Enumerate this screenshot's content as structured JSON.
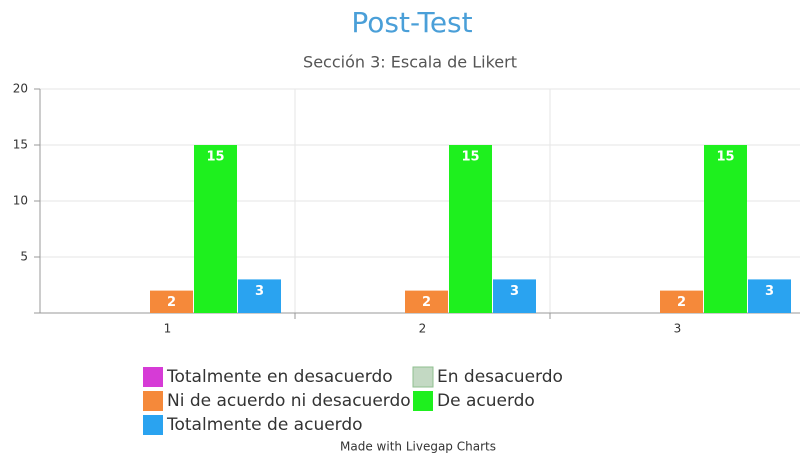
{
  "chart_data": {
    "type": "bar",
    "title": "Post-Test",
    "subtitle": "Sección 3: Escala de Likert",
    "categories": [
      "1",
      "2",
      "3"
    ],
    "series": [
      {
        "name": "Totalmente en desacuerdo",
        "color": "#d63bd6",
        "values": [
          0,
          0,
          0
        ]
      },
      {
        "name": "En desacuerdo",
        "color": "#c3d9c3",
        "values": [
          0,
          0,
          0
        ]
      },
      {
        "name": "Ni de acuerdo ni desacuerdo",
        "color": "#f5893a",
        "values": [
          2,
          2,
          2
        ]
      },
      {
        "name": "De acuerdo",
        "color": "#1ef01e",
        "values": [
          15,
          15,
          15
        ]
      },
      {
        "name": "Totalmente de acuerdo",
        "color": "#2aa3f0",
        "values": [
          3,
          3,
          3
        ]
      }
    ],
    "ylim": [
      0,
      20
    ],
    "yticks": [
      5,
      10,
      15,
      20
    ],
    "grid": true,
    "legend": "bottom",
    "footer": "Made with Livegap Charts"
  }
}
